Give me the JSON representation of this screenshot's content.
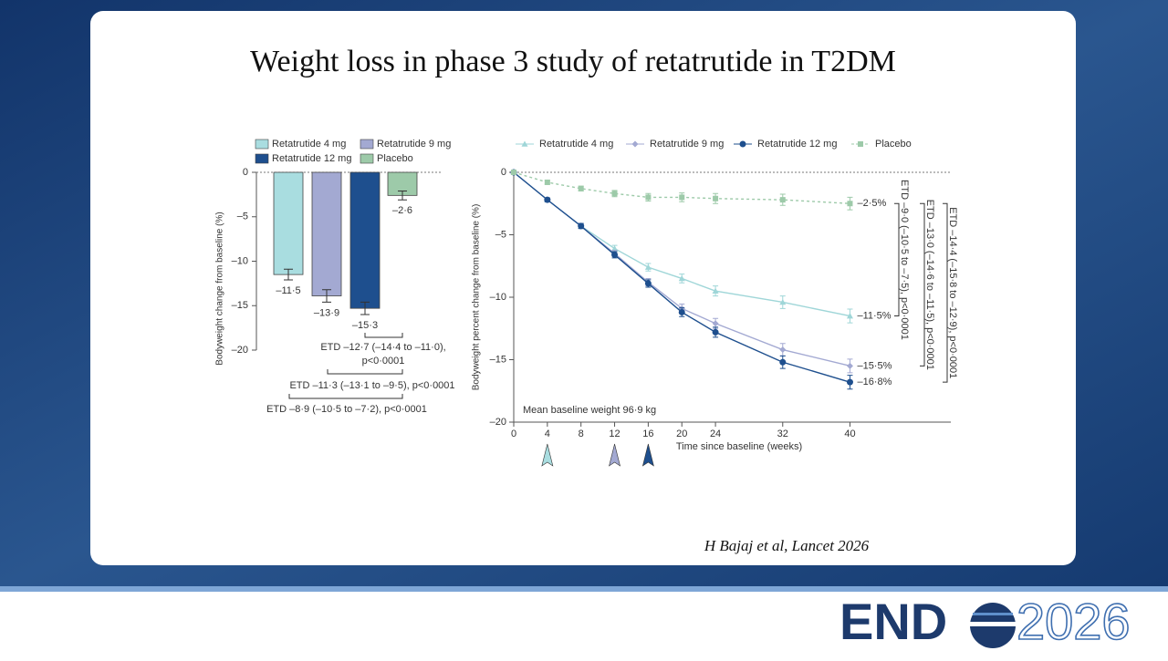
{
  "slide": {
    "title": "Weight loss in phase 3 study of retatrutide in T2DM",
    "citation": "H Bajaj et al, Lancet 2026"
  },
  "logo": {
    "prefix": "END",
    "year": "2026"
  },
  "chart_data": [
    {
      "type": "bar",
      "ylabel": "Bodyweight change from baseline (%)",
      "categories": [
        null
      ],
      "ylim": [
        -20,
        0
      ],
      "yticks": [
        0,
        {
          "value": -5,
          "label": "–5"
        },
        {
          "value": -10,
          "label": "–10"
        },
        {
          "value": -15,
          "label": "–15"
        },
        {
          "value": -20,
          "label": "–20"
        }
      ],
      "series": [
        {
          "name": "Retatrutide 4 mg",
          "color": "#a9dde0",
          "values": [
            -11.5
          ],
          "errors": [
            0.6
          ],
          "value_labels": [
            "–11·5"
          ]
        },
        {
          "name": "Retatrutide 9 mg",
          "color": "#a3a9d2",
          "values": [
            -13.9
          ],
          "errors": [
            0.7
          ],
          "value_labels": [
            "–13·9"
          ]
        },
        {
          "name": "Retatrutide 12 mg",
          "color": "#1e4f8e",
          "values": [
            -15.3
          ],
          "errors": [
            0.7
          ],
          "value_labels": [
            "–15·3"
          ]
        },
        {
          "name": "Placebo",
          "color": "#9dcaa9",
          "values": [
            -2.6
          ],
          "errors": [
            0.5
          ],
          "value_labels": [
            "–2·6"
          ]
        }
      ],
      "etd": [
        [
          "ETD –12·7 (–14·4 to –11·0),",
          "p<0·0001"
        ],
        [
          "ETD –11·3 (–13·1 to –9·5), p<0·0001"
        ],
        [
          "ETD –8·9 (–10·5 to –7·2), p<0·0001"
        ]
      ]
    },
    {
      "type": "line",
      "xlabel": "Time since baseline (weeks)",
      "ylabel": "Bodyweight percent change from baseline (%)",
      "x": [
        0,
        4,
        8,
        12,
        16,
        20,
        24,
        32,
        40
      ],
      "xlim": [
        0,
        52
      ],
      "xticks": [
        0,
        4,
        8,
        12,
        16,
        20,
        24,
        32,
        40
      ],
      "ylim": [
        -20,
        0
      ],
      "yticks": [
        0,
        {
          "value": -5,
          "label": "–5"
        },
        {
          "value": -10,
          "label": "–10"
        },
        {
          "value": -15,
          "label": "–15"
        },
        {
          "value": -20,
          "label": "–20"
        }
      ],
      "series": [
        {
          "name": "Retatrutide 4 mg",
          "color": "#9fd6d8",
          "marker": "triangle",
          "dashed": false,
          "values": [
            0,
            -2.2,
            -4.3,
            -6.1,
            -7.6,
            -8.5,
            -9.5,
            -10.4,
            -11.5
          ],
          "errors": [
            null,
            0.15,
            0.2,
            0.25,
            0.3,
            0.35,
            0.4,
            0.5,
            0.55
          ],
          "value_labels": [
            null,
            null,
            null,
            null,
            null,
            null,
            null,
            null,
            "–11·5%"
          ]
        },
        {
          "name": "Retatrutide 9 mg",
          "color": "#a3a9d2",
          "marker": "diamond",
          "dashed": false,
          "values": [
            0,
            -2.2,
            -4.3,
            -6.5,
            -8.8,
            -10.9,
            -12.1,
            -14.2,
            -15.5
          ],
          "errors": [
            null,
            0.15,
            0.2,
            0.25,
            0.3,
            0.35,
            0.4,
            0.5,
            0.55
          ],
          "value_labels": [
            null,
            null,
            null,
            null,
            null,
            null,
            null,
            null,
            "–15·5%"
          ]
        },
        {
          "name": "Retatrutide 12 mg",
          "color": "#1e4f8e",
          "marker": "circle",
          "dashed": false,
          "values": [
            0,
            -2.2,
            -4.3,
            -6.6,
            -8.9,
            -11.2,
            -12.8,
            -15.2,
            -16.8
          ],
          "errors": [
            null,
            0.15,
            0.2,
            0.25,
            0.3,
            0.35,
            0.4,
            0.5,
            0.55
          ],
          "value_labels": [
            null,
            null,
            null,
            null,
            null,
            null,
            null,
            null,
            "–16·8%"
          ]
        },
        {
          "name": "Placebo",
          "color": "#9dcaa9",
          "marker": "square",
          "dashed": true,
          "values": [
            0,
            -0.8,
            -1.3,
            -1.7,
            -2.0,
            -2.0,
            -2.1,
            -2.2,
            -2.5
          ],
          "errors": [
            null,
            0.15,
            0.2,
            0.25,
            0.3,
            0.35,
            0.4,
            0.45,
            0.5
          ],
          "value_labels": [
            null,
            null,
            null,
            null,
            null,
            null,
            null,
            null,
            "–2·5%"
          ]
        }
      ],
      "baseline_note": "Mean baseline weight 96·9 kg",
      "etd": [
        "ETD –9·0 (–10·5 to –7·5), p<0·0001",
        "ETD –13·0 (–14·6 to –11·5), p<0·0001",
        "ETD –14·4 (–15·8 to –12·9), p<0·0001"
      ],
      "dose_markers": [
        {
          "x": 4,
          "color": "#a9dde0"
        },
        {
          "x": 12,
          "color": "#a3a9d2"
        },
        {
          "x": 16,
          "color": "#1e4f8e"
        }
      ]
    }
  ]
}
